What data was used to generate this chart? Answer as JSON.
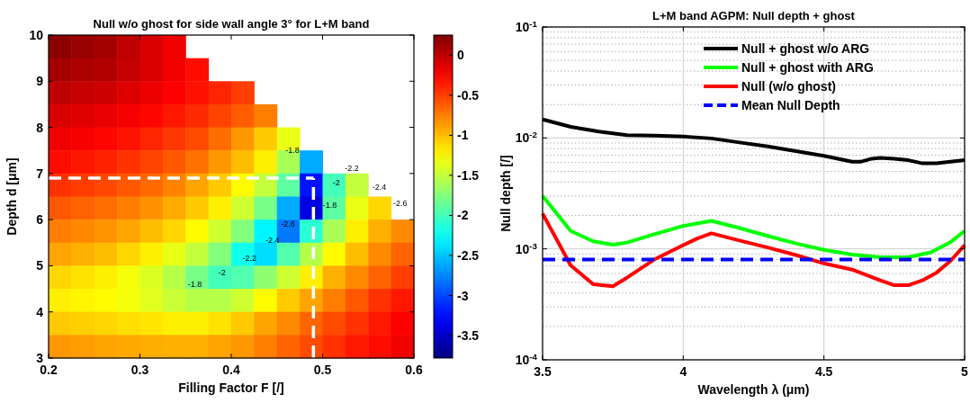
{
  "chart_data": [
    {
      "type": "heatmap",
      "title": "Null w/o ghost for side wall angle 3° for L+M band",
      "xlabel": "Filling Factor F [/]",
      "ylabel": "Depth d [μm]",
      "x": [
        0.2125,
        0.2375,
        0.2625,
        0.2875,
        0.3125,
        0.3375,
        0.3625,
        0.3875,
        0.4125,
        0.4375,
        0.4625,
        0.4875,
        0.5125,
        0.5375,
        0.5625,
        0.5875
      ],
      "y": [
        9.75,
        9.25,
        8.75,
        8.25,
        7.75,
        7.25,
        6.75,
        6.25,
        5.75,
        5.25,
        4.75,
        4.25,
        3.75,
        3.25
      ],
      "xlim": [
        0.2,
        0.6
      ],
      "xticks": [
        0.2,
        0.3,
        0.4,
        0.5,
        0.6
      ],
      "ylim": [
        3,
        10
      ],
      "yticks": [
        3,
        4,
        5,
        6,
        7,
        8,
        9,
        10
      ],
      "clim": [
        -3.78,
        0.25
      ],
      "cticks": [
        0,
        -0.5,
        -1,
        -1.5,
        -2,
        -2.5,
        -3,
        -3.5
      ],
      "cells": [
        [
          0.2,
          0.15,
          0.1,
          0.0,
          -0.1,
          -0.2,
          null,
          null,
          null,
          null,
          null,
          null,
          null,
          null,
          null,
          null
        ],
        [
          0.1,
          0.08,
          0.05,
          -0.02,
          -0.1,
          -0.2,
          -0.3,
          null,
          null,
          null,
          null,
          null,
          null,
          null,
          null,
          null
        ],
        [
          0.0,
          -0.03,
          -0.06,
          -0.12,
          -0.18,
          -0.25,
          -0.32,
          -0.4,
          -0.5,
          null,
          null,
          null,
          null,
          null,
          null,
          null
        ],
        [
          -0.1,
          -0.13,
          -0.17,
          -0.22,
          -0.28,
          -0.35,
          -0.42,
          -0.52,
          -0.62,
          -0.75,
          null,
          null,
          null,
          null,
          null,
          null
        ],
        [
          -0.2,
          -0.23,
          -0.28,
          -0.33,
          -0.4,
          -0.47,
          -0.55,
          -0.68,
          -0.85,
          -1.05,
          -1.35,
          null,
          null,
          null,
          null,
          null
        ],
        [
          -0.3,
          -0.34,
          -0.39,
          -0.45,
          -0.52,
          -0.6,
          -0.7,
          -0.85,
          -1.0,
          -1.2,
          -1.6,
          -2.6,
          null,
          null,
          null,
          null
        ],
        [
          -0.45,
          -0.49,
          -0.54,
          -0.6,
          -0.67,
          -0.77,
          -0.9,
          -1.05,
          -1.25,
          -1.5,
          -1.9,
          -3.2,
          -2.0,
          -1.5,
          null,
          null
        ],
        [
          -0.6,
          -0.64,
          -0.69,
          -0.75,
          -0.83,
          -0.93,
          -1.05,
          -1.2,
          -1.45,
          -1.8,
          -2.6,
          -3.4,
          -1.9,
          -1.35,
          -1.1,
          null
        ],
        [
          -0.75,
          -0.79,
          -0.84,
          -0.9,
          -1.0,
          -1.1,
          -1.25,
          -1.45,
          -1.75,
          -2.3,
          -2.8,
          -2.1,
          -1.6,
          -1.2,
          -0.95,
          -0.8
        ],
        [
          -0.9,
          -0.95,
          -1.0,
          -1.1,
          -1.2,
          -1.35,
          -1.5,
          -1.75,
          -2.2,
          -2.4,
          -1.95,
          -1.55,
          -1.25,
          -1.0,
          -0.8,
          -0.65
        ],
        [
          -1.1,
          -1.15,
          -1.2,
          -1.3,
          -1.4,
          -1.55,
          -1.8,
          -2.0,
          -1.95,
          -1.7,
          -1.45,
          -1.2,
          -0.95,
          -0.8,
          -0.65,
          -0.5
        ],
        [
          -1.2,
          -1.22,
          -1.25,
          -1.3,
          -1.38,
          -1.47,
          -1.55,
          -1.55,
          -1.45,
          -1.25,
          -1.05,
          -0.9,
          -0.75,
          -0.6,
          -0.45,
          -0.35
        ],
        [
          -1.05,
          -1.07,
          -1.1,
          -1.13,
          -1.16,
          -1.2,
          -1.2,
          -1.15,
          -1.05,
          -0.9,
          -0.8,
          -0.65,
          -0.55,
          -0.45,
          -0.35,
          -0.25
        ],
        [
          -0.85,
          -0.87,
          -0.9,
          -0.92,
          -0.94,
          -0.95,
          -0.95,
          -0.9,
          -0.85,
          -0.75,
          -0.65,
          -0.55,
          -0.45,
          -0.35,
          -0.3,
          -0.2
        ]
      ],
      "ref_lines": [
        {
          "axis": "y",
          "value": 6.9,
          "color": "#ffffff",
          "line_style": "dashed"
        },
        {
          "axis": "x",
          "value": 0.49,
          "color": "#ffffff",
          "line_style": "dashed"
        }
      ],
      "annotations": [
        "-1.8",
        "-2",
        "-2.2",
        "-2.4",
        "-2.6",
        "-1.8",
        "-1.8",
        "-2",
        "-2.2",
        "-2.4",
        "-2.6"
      ]
    },
    {
      "type": "line",
      "title": "L+M band AGPM: Null depth + ghost",
      "xlabel": "Wavelength λ (μm)",
      "ylabel": "Null depth [/]",
      "xlim": [
        3.5,
        5
      ],
      "xticks": [
        3.5,
        4,
        4.5,
        5
      ],
      "ylim": [
        0.0001,
        0.1
      ],
      "yticks": [
        {
          "value": 0.0001,
          "label": "10$^{-4}$"
        },
        {
          "value": 0.001,
          "label": "10$^{-3}$"
        },
        {
          "value": 0.01,
          "label": "10$^{-2}$"
        },
        {
          "value": 0.1,
          "label": "10$^{-1}$"
        }
      ],
      "log": "y",
      "grid": true,
      "legend": "top right",
      "series": [
        {
          "name": "Null + ghost w/o ARG",
          "color": "#000000",
          "x": [
            3.5,
            3.6,
            3.7,
            3.75,
            3.8,
            3.9,
            4.0,
            4.1,
            4.2,
            4.3,
            4.4,
            4.5,
            4.6,
            4.63,
            4.67,
            4.7,
            4.75,
            4.8,
            4.85,
            4.9,
            5.0
          ],
          "values": [
            0.0147,
            0.0126,
            0.0114,
            0.011,
            0.0106,
            0.0105,
            0.0103,
            0.0099,
            0.0091,
            0.0084,
            0.0076,
            0.0069,
            0.0061,
            0.0061,
            0.0065,
            0.0066,
            0.0065,
            0.0063,
            0.0059,
            0.0059,
            0.0063
          ]
        },
        {
          "name": "Null + ghost with ARG",
          "color": "#00ff00",
          "x": [
            3.5,
            3.6,
            3.68,
            3.75,
            3.8,
            3.9,
            4.0,
            4.1,
            4.2,
            4.3,
            4.4,
            4.5,
            4.6,
            4.7,
            4.8,
            4.88,
            4.95,
            5.0
          ],
          "values": [
            0.003,
            0.00145,
            0.00117,
            0.00109,
            0.00114,
            0.00136,
            0.00161,
            0.00179,
            0.00154,
            0.00131,
            0.00112,
            0.00098,
            0.00089,
            0.00084,
            0.00084,
            0.00093,
            0.00115,
            0.00145
          ]
        },
        {
          "name": "Null (w/o ghost)",
          "color": "#ff0000",
          "x": [
            3.5,
            3.6,
            3.68,
            3.75,
            3.8,
            3.9,
            4.0,
            4.05,
            4.1,
            4.2,
            4.3,
            4.4,
            4.5,
            4.6,
            4.7,
            4.75,
            4.8,
            4.85,
            4.9,
            4.95,
            5.0
          ],
          "values": [
            0.00208,
            0.00071,
            0.00048,
            0.00046,
            0.00055,
            0.00081,
            0.00108,
            0.00124,
            0.00138,
            0.00119,
            0.00103,
            0.00088,
            0.00074,
            0.00065,
            0.00052,
            0.00047,
            0.00047,
            0.00052,
            0.00061,
            0.00078,
            0.00108
          ]
        },
        {
          "name": "Mean Null Depth",
          "color": "#0000ff",
          "line_style": "dashed",
          "x": [
            3.5,
            5.0
          ],
          "values": [
            0.0008,
            0.0008
          ]
        }
      ]
    }
  ]
}
